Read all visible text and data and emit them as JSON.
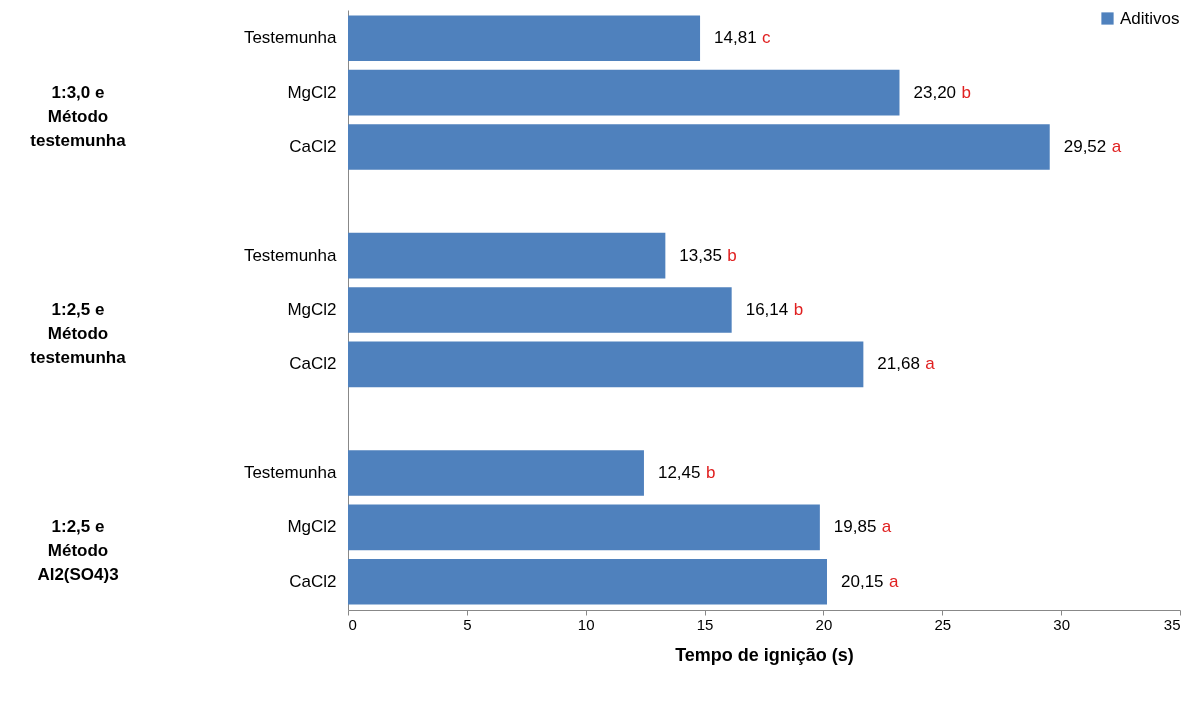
{
  "chart_data": {
    "type": "bar",
    "orientation": "horizontal",
    "xlabel": "Tempo de ignição (s)",
    "categories": [
      "Testemunha",
      "MgCl2",
      "CaCl2",
      "Testemunha",
      "MgCl2",
      "CaCl2",
      "Testemunha",
      "MgCl2",
      "CaCl2"
    ],
    "series": [
      {
        "name": "Aditivos",
        "color": "#4f81bd",
        "values": [
          14.81,
          23.2,
          29.52,
          13.35,
          16.14,
          21.68,
          12.45,
          19.85,
          20.15
        ],
        "value_labels": [
          "14,81 c",
          "23,20 b",
          "29,52 a",
          "13,35 b",
          "16,14 b",
          "21,68 a",
          "12,45 b",
          "19,85 a",
          "20,15 a"
        ]
      }
    ],
    "annotations": [
      "1:3,0 e Método testemunha",
      "1:2,5 e Método testemunha",
      "1:2,5 e Método Al2(SO4)3"
    ],
    "xlim": [
      0,
      35
    ],
    "xticks": [
      0,
      5,
      10,
      15,
      20,
      25,
      30,
      35
    ],
    "grid": false,
    "legend": "top right"
  }
}
